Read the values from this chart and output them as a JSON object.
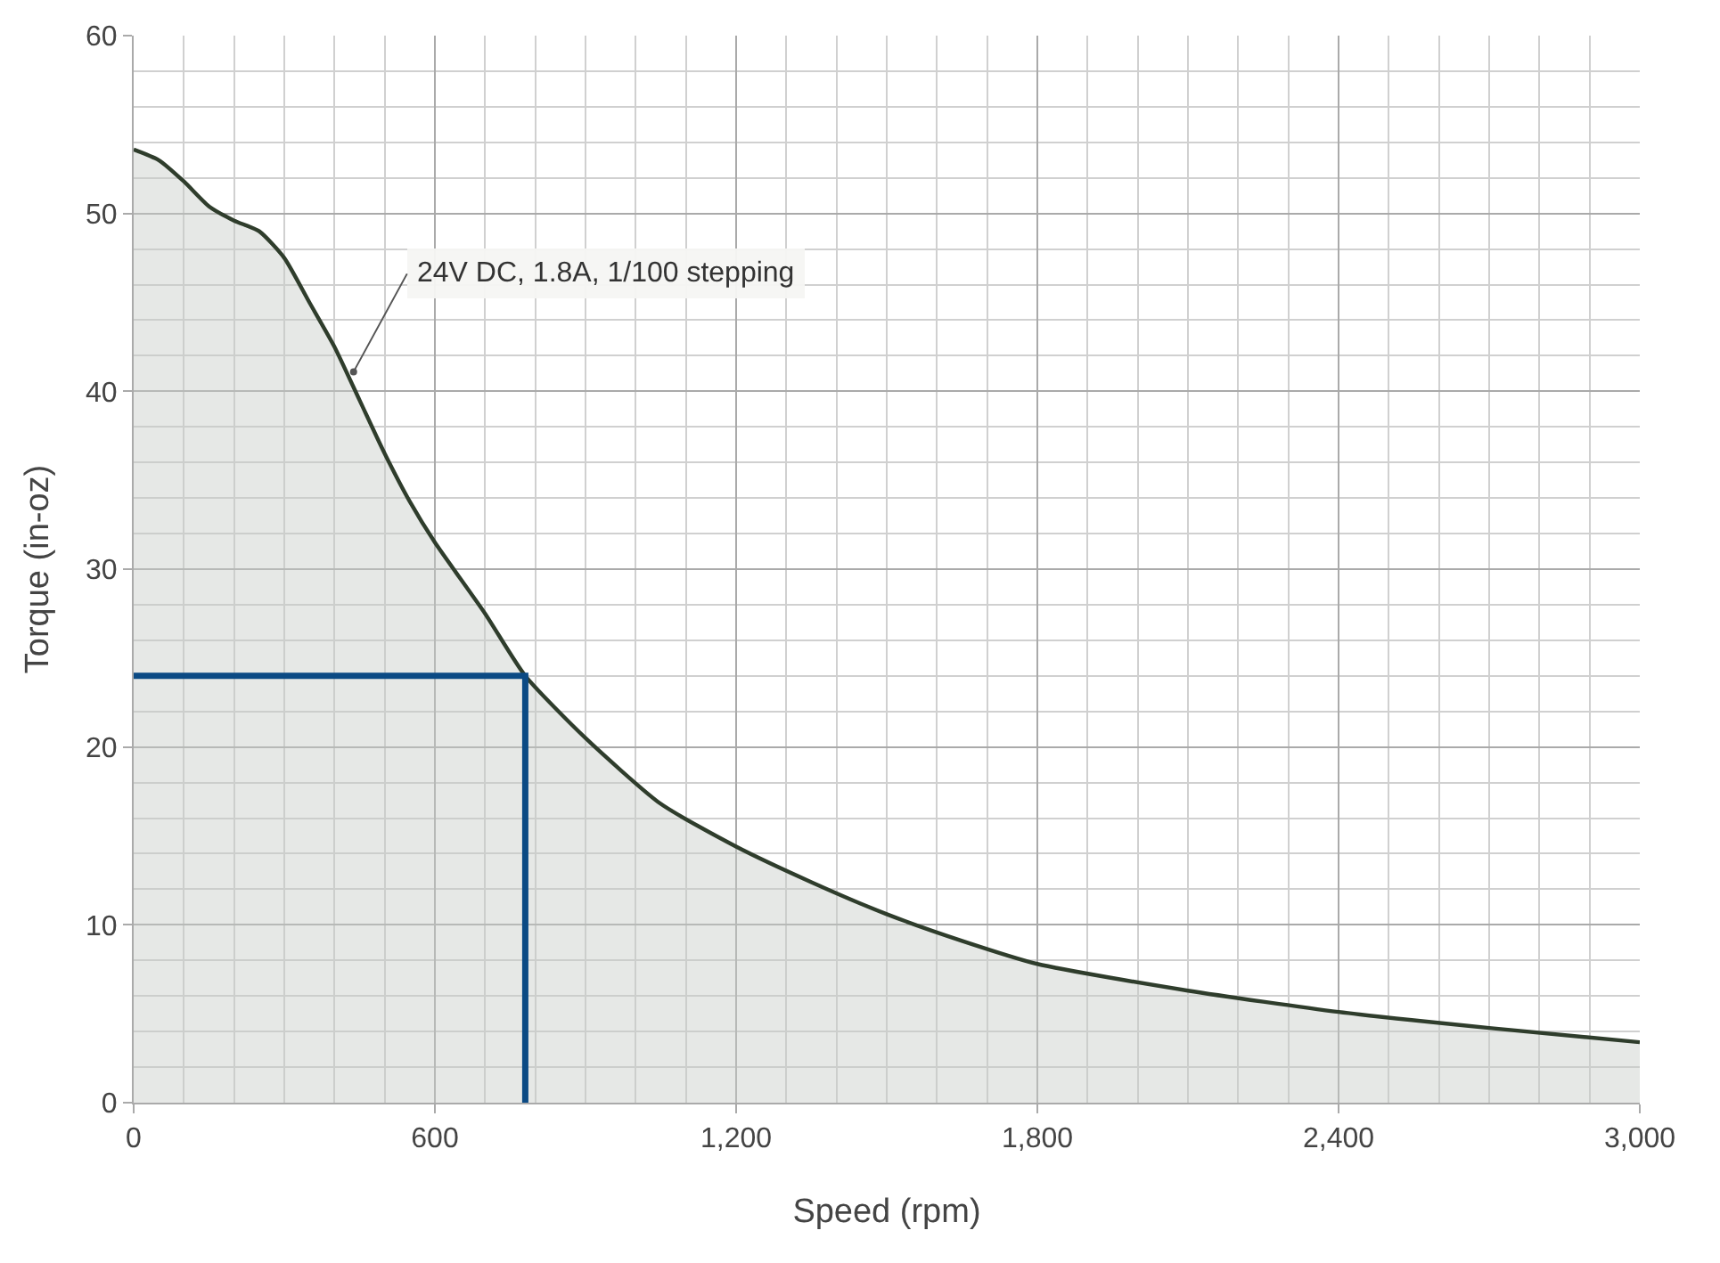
{
  "chart_data": {
    "type": "area",
    "xlabel": "Speed (rpm)",
    "ylabel": "Torque (in-oz)",
    "xlim": [
      0,
      3000
    ],
    "xticks": [
      0,
      600,
      {
        "value": 1200,
        "label": "1,200"
      },
      {
        "value": 1800,
        "label": "1,800"
      },
      {
        "value": 2400,
        "label": "2,400"
      },
      {
        "value": 3000,
        "label": "3,000"
      }
    ],
    "ylim": [
      0,
      60
    ],
    "yticks": [
      0,
      10,
      20,
      30,
      40,
      50,
      60
    ],
    "grid": true,
    "series": [
      {
        "color": "#2f3d2c",
        "x": [
          0,
          50,
          100,
          150,
          200,
          250,
          300,
          350,
          400,
          450,
          500,
          550,
          600,
          700,
          780,
          900,
          1050,
          1200,
          1350,
          1500,
          1650,
          1800,
          2100,
          2400,
          2700,
          3000
        ],
        "values": [
          53.6,
          53.0,
          51.8,
          50.4,
          49.6,
          49.0,
          47.5,
          45.0,
          42.5,
          39.5,
          36.5,
          33.8,
          31.5,
          27.5,
          24.0,
          20.5,
          16.8,
          14.4,
          12.4,
          10.6,
          9.1,
          7.8,
          6.3,
          5.1,
          4.2,
          3.4
        ]
      },
      {
        "type": "line",
        "color": "#0b4a84",
        "x": [
          0,
          780,
          780
        ],
        "values": [
          24,
          24,
          0
        ]
      }
    ],
    "annotations": [
      {
        "text": "24V DC, 1.8A, 1/100 stepping",
        "x": 438,
        "y": 41.1
      }
    ]
  }
}
